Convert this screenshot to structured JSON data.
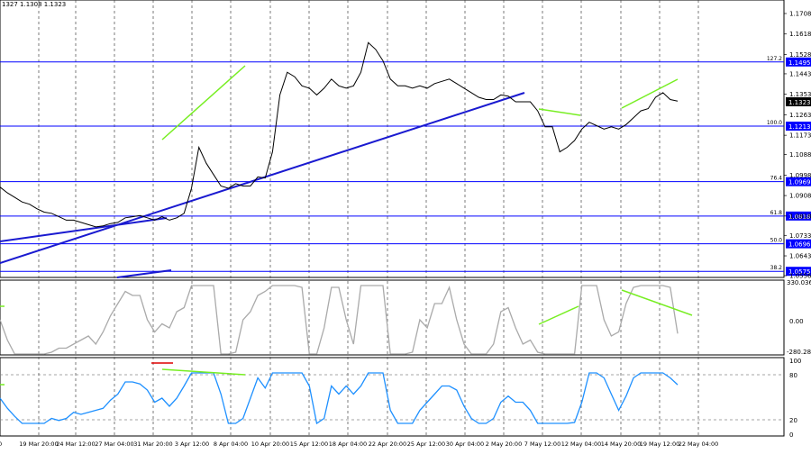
{
  "header": {
    "ohlc": "1327 1.1308 1.1323"
  },
  "price_axis": {
    "ticks": [
      "1.1708",
      "1.1618",
      "1.1528",
      "1.1443",
      "1.1353",
      "1.1263",
      "1.1173",
      "1.1088",
      "1.0998",
      "1.0908",
      "1.0818",
      "1.0733",
      "1.0643",
      "1.0556"
    ],
    "current": "1.1323"
  },
  "levels": [
    {
      "label": "127.2",
      "price": "1.1495"
    },
    {
      "label": "100.0",
      "price": "1.1213"
    },
    {
      "label": "76.4",
      "price": "1.0969"
    },
    {
      "label": "61.8",
      "price": "1.0818"
    },
    {
      "label": "50.0",
      "price": "1.0696"
    },
    {
      "label": "38.2",
      "price": "1.0575"
    }
  ],
  "indicators": {
    "cci": {
      "ticks": [
        "330.0361",
        "0.00",
        "-280.284"
      ]
    },
    "rsi": {
      "ticks": [
        "100",
        "80",
        "20",
        "0"
      ]
    }
  },
  "time_axis": {
    "labels": [
      "0",
      "19 Mar 20:00",
      "24 Mar 12:00",
      "27 Mar 04:00",
      "31 Mar 20:00",
      "3 Apr 12:00",
      "8 Apr 04:00",
      "10 Apr 20:00",
      "15 Apr 12:00",
      "18 Apr 04:00",
      "22 Apr 20:00",
      "25 Apr 12:00",
      "30 Apr 04:00",
      "2 May 20:00",
      "7 May 12:00",
      "12 May 04:00",
      "14 May 20:00",
      "19 May 12:00",
      "22 May 04:00"
    ]
  },
  "colors": {
    "price_line": "#000000",
    "fib_line": "#0000ff",
    "trend_line": "#1a1ad0",
    "divergence": "#77ee22",
    "cci_line": "#aaaaaa",
    "rsi_line": "#1e90ff",
    "marker": "#dd0000"
  },
  "chart_data": {
    "type": "line",
    "series": [
      {
        "values": [
          1.0945,
          1.092,
          1.09,
          1.088,
          1.087,
          1.085,
          1.0835,
          1.083,
          1.0815,
          1.08,
          1.08,
          1.079,
          1.078,
          1.077,
          1.0775,
          1.0785,
          1.079,
          1.081,
          1.0815,
          1.082,
          1.081,
          1.08,
          1.0815,
          1.08,
          1.081,
          1.083,
          1.094,
          1.112,
          1.105,
          1.1,
          1.095,
          1.094,
          1.096,
          1.095,
          1.095,
          1.099,
          1.0985,
          1.11,
          1.135,
          1.145,
          1.143,
          1.139,
          1.138,
          1.135,
          1.138,
          1.142,
          1.139,
          1.138,
          1.139,
          1.145,
          1.158,
          1.155,
          1.15,
          1.142,
          1.139,
          1.139,
          1.138,
          1.139,
          1.138,
          1.14,
          1.141,
          1.142,
          1.14,
          1.138,
          1.136,
          1.134,
          1.133,
          1.133,
          1.135,
          1.1345,
          1.132,
          1.132,
          1.132,
          1.128,
          1.121,
          1.121,
          1.11,
          1.112,
          1.115,
          1.12,
          1.123,
          1.1215,
          1.12,
          1.121,
          1.12,
          1.122,
          1.125,
          1.128,
          1.129,
          1.134,
          1.136,
          1.133,
          1.1323
        ]
      }
    ]
  }
}
